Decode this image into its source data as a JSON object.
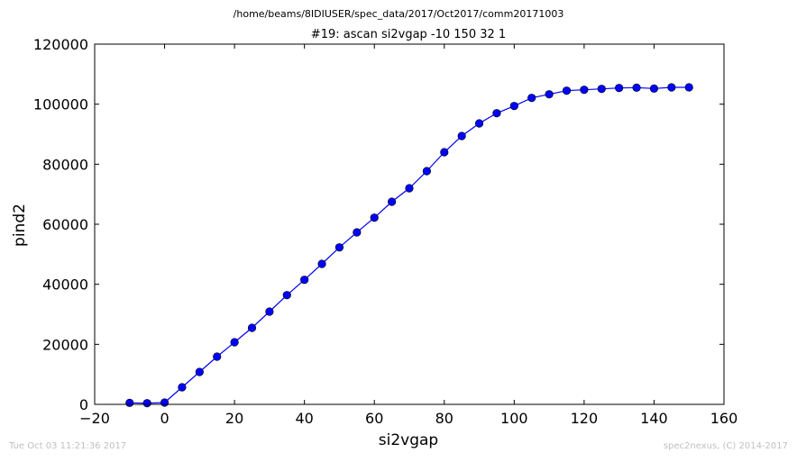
{
  "page": {
    "file_path": "/home/beams/8IDIUSER/spec_data/2017/Oct2017/comm20171003",
    "timestamp": "Tue Oct 03 11:21:36 2017",
    "credit": "spec2nexus, (C) 2014-2017"
  },
  "chart_data": {
    "type": "line",
    "title": "#19: ascan  si2vgap -10 150  32 1",
    "xlabel": "si2vgap",
    "ylabel": "pind2",
    "xlim": [
      -20,
      160
    ],
    "ylim": [
      0,
      120000
    ],
    "x_ticks": [
      -20,
      0,
      20,
      40,
      60,
      80,
      100,
      120,
      140,
      160
    ],
    "y_ticks": [
      0,
      20000,
      40000,
      60000,
      80000,
      100000,
      120000
    ],
    "x_tick_labels": [
      "−20",
      "0",
      "20",
      "40",
      "60",
      "80",
      "100",
      "120",
      "140",
      "160"
    ],
    "y_tick_labels": [
      "0",
      "20000",
      "40000",
      "60000",
      "80000",
      "100000",
      "120000"
    ],
    "grid": false,
    "legend": "none",
    "line_color": "#0000ff",
    "marker": "circle",
    "series": [
      {
        "x": [
          -10,
          -5,
          0,
          5,
          10,
          15,
          20,
          25,
          30,
          35,
          40,
          45,
          50,
          55,
          60,
          65,
          70,
          75,
          80,
          85,
          90,
          95,
          100,
          105,
          110,
          115,
          120,
          125,
          130,
          135,
          140,
          145,
          150
        ],
        "y": [
          500,
          400,
          600,
          5700,
          10800,
          15900,
          20700,
          25500,
          30900,
          36400,
          41500,
          46800,
          52300,
          57300,
          62200,
          67500,
          72000,
          77700,
          84000,
          89400,
          93600,
          97000,
          99400,
          102100,
          103300,
          104500,
          104800,
          105100,
          105400,
          105500,
          105200,
          105600,
          105600
        ]
      }
    ]
  }
}
